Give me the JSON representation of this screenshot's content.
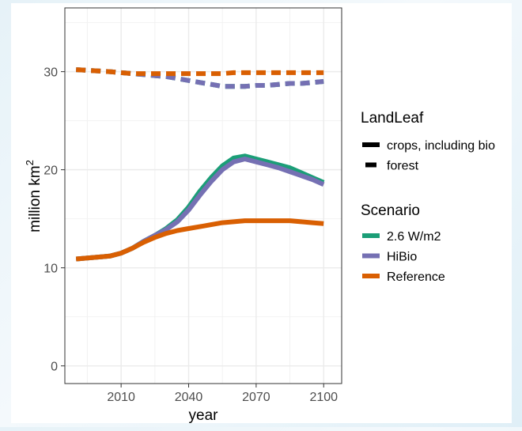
{
  "chart_data": {
    "type": "line",
    "xlabel": "year",
    "ylabel": "million km",
    "ylabel_superscript": "2",
    "xlim": [
      1985,
      2108
    ],
    "ylim": [
      -1.8,
      36.5
    ],
    "x_ticks": [
      2010,
      2040,
      2070,
      2100
    ],
    "y_ticks": [
      0,
      10,
      20,
      30
    ],
    "grid": true,
    "legend_position": "right",
    "legends": [
      {
        "title": "LandLeaf",
        "entries": [
          {
            "label": "crops, including bio",
            "linetype": "solid"
          },
          {
            "label": "forest",
            "linetype": "dashed"
          }
        ]
      },
      {
        "title": "Scenario",
        "entries": [
          {
            "label": "2.6 W/m2",
            "color": "#1b9e77"
          },
          {
            "label": "HiBio",
            "color": "#7570b3"
          },
          {
            "label": "Reference",
            "color": "#d95f02"
          }
        ]
      }
    ],
    "x": [
      1990,
      2005,
      2010,
      2015,
      2020,
      2025,
      2030,
      2035,
      2040,
      2045,
      2050,
      2055,
      2060,
      2065,
      2070,
      2075,
      2080,
      2085,
      2090,
      2095,
      2100
    ],
    "series": [
      {
        "landleaf": "forest",
        "scenario": "2.6 W/m2",
        "values": [
          30.2,
          30.0,
          29.9,
          29.8,
          29.7,
          29.6,
          29.5,
          29.3,
          29.1,
          28.9,
          28.7,
          28.5,
          28.5,
          28.5,
          28.6,
          28.6,
          28.7,
          28.8,
          28.8,
          28.9,
          29.0
        ]
      },
      {
        "landleaf": "forest",
        "scenario": "HiBio",
        "values": [
          30.2,
          30.0,
          29.9,
          29.8,
          29.7,
          29.6,
          29.5,
          29.3,
          29.1,
          28.9,
          28.7,
          28.5,
          28.5,
          28.5,
          28.6,
          28.6,
          28.7,
          28.8,
          28.8,
          28.9,
          29.0
        ]
      },
      {
        "landleaf": "forest",
        "scenario": "Reference",
        "values": [
          30.2,
          30.0,
          29.9,
          29.8,
          29.8,
          29.8,
          29.8,
          29.8,
          29.8,
          29.8,
          29.8,
          29.8,
          29.9,
          29.9,
          29.9,
          29.9,
          29.9,
          29.9,
          29.9,
          29.9,
          29.9
        ]
      },
      {
        "landleaf": "crops, including bio",
        "scenario": "2.6 W/m2",
        "values": [
          10.9,
          11.2,
          11.5,
          12.0,
          12.7,
          13.3,
          14.0,
          14.9,
          16.2,
          17.8,
          19.2,
          20.4,
          21.2,
          21.4,
          21.1,
          20.8,
          20.5,
          20.2,
          19.7,
          19.2,
          18.7
        ]
      },
      {
        "landleaf": "crops, including bio",
        "scenario": "HiBio",
        "values": [
          10.9,
          11.2,
          11.5,
          12.0,
          12.7,
          13.3,
          13.9,
          14.7,
          15.9,
          17.4,
          18.8,
          20.0,
          20.8,
          21.1,
          20.8,
          20.5,
          20.2,
          19.8,
          19.4,
          19.0,
          18.5
        ]
      },
      {
        "landleaf": "crops, including bio",
        "scenario": "Reference",
        "values": [
          10.9,
          11.2,
          11.5,
          12.0,
          12.6,
          13.1,
          13.5,
          13.8,
          14.0,
          14.2,
          14.4,
          14.6,
          14.7,
          14.8,
          14.8,
          14.8,
          14.8,
          14.8,
          14.7,
          14.6,
          14.5
        ]
      }
    ]
  }
}
